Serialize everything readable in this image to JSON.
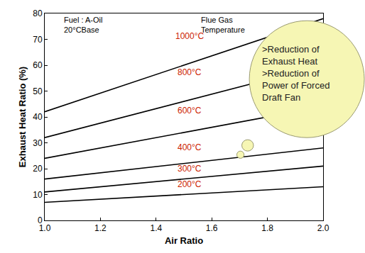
{
  "chart_data": {
    "type": "line",
    "x_label": "Air Ratio",
    "y_label": "Exhaust Heat Ratio (%)",
    "x": [
      1.0,
      2.0
    ],
    "series": [
      {
        "name": "1000°C",
        "color": "#000000",
        "values": [
          42,
          78
        ]
      },
      {
        "name": "800°C",
        "color": "#000000",
        "values": [
          32,
          60
        ]
      },
      {
        "name": "600°C",
        "color": "#000000",
        "values": [
          24,
          44
        ]
      },
      {
        "name": "400°C",
        "color": "#000000",
        "values": [
          16,
          28
        ]
      },
      {
        "name": "300°C",
        "color": "#000000",
        "values": [
          11,
          21
        ]
      },
      {
        "name": "200°C",
        "color": "#000000",
        "values": [
          7,
          13
        ]
      }
    ],
    "xlim": [
      1.0,
      2.0
    ],
    "xticks": [
      {
        "value": 1,
        "label": "1.0"
      },
      {
        "value": 1.2,
        "label": "1.2"
      },
      {
        "value": 1.4,
        "label": "1.4"
      },
      {
        "value": 1.6,
        "label": "1.6"
      },
      {
        "value": 1.8,
        "label": "1.8"
      },
      {
        "value": 2,
        "label": "2.0"
      }
    ],
    "ylim": [
      0,
      80
    ],
    "yticks": [
      0,
      10,
      20,
      30,
      40,
      50,
      60,
      70,
      80
    ],
    "grid": false,
    "annotations": [
      [
        "Fuel : A-Oil",
        "20°CBase"
      ],
      [
        "Flue Gas",
        "Temperature"
      ]
    ],
    "callout": [
      [
        ">Reduction of",
        "Exhaust Heat"
      ],
      [
        ">Reduction of",
        "Power of Forced",
        "Draft Fan"
      ]
    ]
  }
}
